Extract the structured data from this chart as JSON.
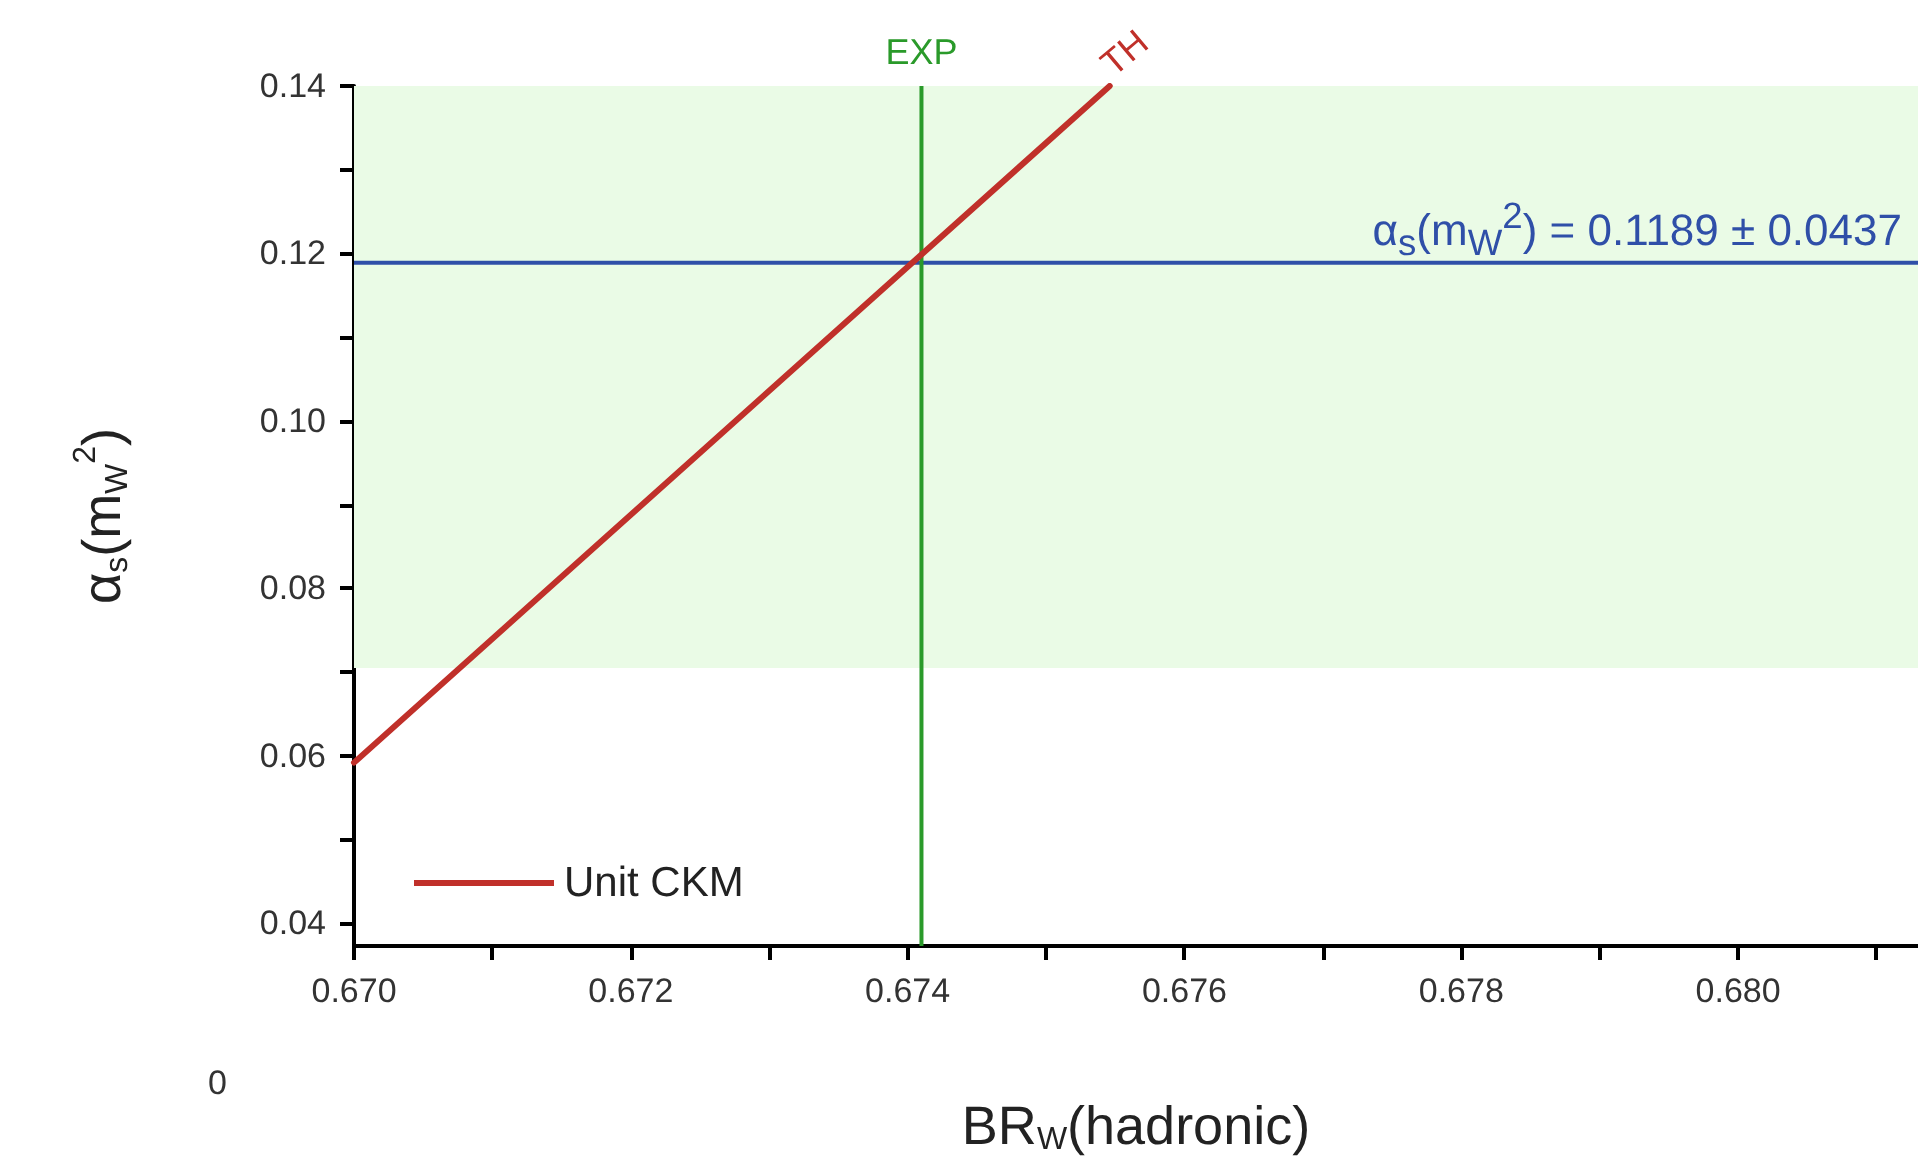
{
  "chart_data": {
    "type": "line",
    "xlabel": "BR$_{W}$(hadronic)",
    "ylabel": "α$_{s}$(m$_{W}$$^{2}$)",
    "series": [
      {
        "name": "Unit CKM",
        "color": "#c0302a",
        "x": [
          0.67,
          0.67546
        ],
        "values": [
          0.0592,
          0.14
        ]
      }
    ],
    "xlim": [
      0.67,
      0.6813
    ],
    "xticks": [
      {
        "value": 0.67,
        "label": "0.670"
      },
      {
        "value": 0.671,
        "label": null
      },
      {
        "value": 0.672,
        "label": "0.672"
      },
      {
        "value": 0.673,
        "label": null
      },
      {
        "value": 0.674,
        "label": "0.674"
      },
      {
        "value": 0.675,
        "label": null
      },
      {
        "value": 0.676,
        "label": "0.676"
      },
      {
        "value": 0.677,
        "label": null
      },
      {
        "value": 0.678,
        "label": "0.678"
      },
      {
        "value": 0.679,
        "label": null
      },
      {
        "value": 0.68,
        "label": "0.680"
      },
      {
        "value": 0.681,
        "label": null
      }
    ],
    "ylim": [
      0.0373,
      0.14
    ],
    "yticks": [
      {
        "value": 0.04,
        "label": "0.04"
      },
      {
        "value": 0.05,
        "label": null
      },
      {
        "value": 0.06,
        "label": "0.06"
      },
      {
        "value": 0.07,
        "label": null
      },
      {
        "value": 0.08,
        "label": "0.08"
      },
      {
        "value": 0.09,
        "label": null
      },
      {
        "value": 0.1,
        "label": "0.10"
      },
      {
        "value": 0.11,
        "label": null
      },
      {
        "value": 0.12,
        "label": "0.12"
      },
      {
        "value": 0.13,
        "label": null
      },
      {
        "value": 0.14,
        "label": "0.14"
      }
    ],
    "ref_lines": [
      {
        "axis": "y",
        "value": 0.1189,
        "label": "α$_{s}$(m$_{W}$$^{2}$) = 0.1189 ± 0.0437",
        "color": "#2f4fa8"
      },
      {
        "axis": "x",
        "value": 0.6741,
        "label": "EXP",
        "color": "#2a9a2a"
      }
    ],
    "bands": [
      {
        "axis": "y",
        "from": 0.0705,
        "to": 0.14,
        "color": "#eafbe6"
      }
    ],
    "annotations": [
      {
        "text": "TH",
        "x": 0.67546,
        "y": 0.14
      },
      "0"
    ],
    "legend": "bottom left",
    "marker": "none",
    "line_style": "solid",
    "grid": false
  }
}
